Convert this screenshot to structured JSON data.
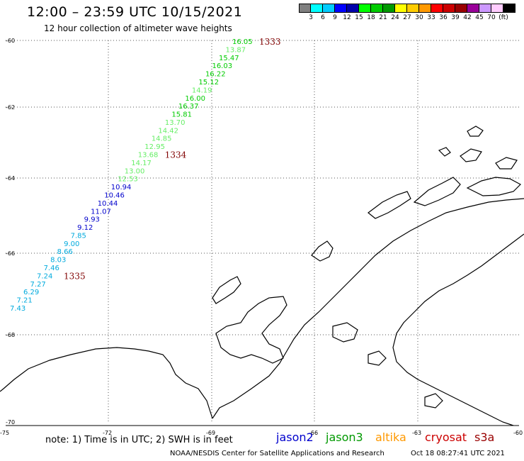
{
  "header": {
    "title": "12:00 – 23:59 UTC 10/15/2021",
    "subtitle": "12 hour collection of altimeter wave heights"
  },
  "legend": {
    "colors": [
      "#808080",
      "#00ffff",
      "#00ccff",
      "#0000ff",
      "#0000aa",
      "#00ff00",
      "#00cc00",
      "#009900",
      "#ffff00",
      "#ffcc00",
      "#ff9900",
      "#ff0000",
      "#cc0000",
      "#990000",
      "#990099",
      "#cc99ff",
      "#ffccff",
      "#000000"
    ],
    "labels": [
      "3",
      "6",
      "9",
      "12",
      "15",
      "18",
      "21",
      "24",
      "27",
      "30",
      "33",
      "36",
      "39",
      "42",
      "45",
      "70",
      "(ft)"
    ]
  },
  "axes": {
    "lat_labels": [
      "-60",
      "-62",
      "-64",
      "-66",
      "-68",
      "-70"
    ],
    "lon_labels": [
      "-75",
      "-72",
      "-69",
      "-66",
      "-63",
      "-60"
    ]
  },
  "track": {
    "obs": [
      {
        "t": "16.05",
        "c": "#00cc00"
      },
      {
        "t": "13.87",
        "c": "#66ee66"
      },
      {
        "t": "15.47",
        "c": "#00cc00"
      },
      {
        "t": "16.03",
        "c": "#00cc00"
      },
      {
        "t": "16.22",
        "c": "#00cc00"
      },
      {
        "t": "15.12",
        "c": "#00cc00"
      },
      {
        "t": "14.19",
        "c": "#66ee66"
      },
      {
        "t": "16.00",
        "c": "#00cc00"
      },
      {
        "t": "16.37",
        "c": "#00cc00"
      },
      {
        "t": "15.81",
        "c": "#00cc00"
      },
      {
        "t": "13.70",
        "c": "#66ee66"
      },
      {
        "t": "14.42",
        "c": "#66ee66"
      },
      {
        "t": "14.85",
        "c": "#66ee66"
      },
      {
        "t": "12.95",
        "c": "#66ee66"
      },
      {
        "t": "13.68",
        "c": "#66ee66"
      },
      {
        "t": "14.17",
        "c": "#66ee66"
      },
      {
        "t": "13.00",
        "c": "#66ee66"
      },
      {
        "t": "12.53",
        "c": "#66ee66"
      },
      {
        "t": "10.94",
        "c": "#0000cc"
      },
      {
        "t": "10.46",
        "c": "#0000cc"
      },
      {
        "t": "10.44",
        "c": "#0000cc"
      },
      {
        "t": "11.07",
        "c": "#0000cc"
      },
      {
        "t": "9.93",
        "c": "#0000cc"
      },
      {
        "t": "9.12",
        "c": "#0000cc"
      },
      {
        "t": "7.85",
        "c": "#00aadd"
      },
      {
        "t": "9.00",
        "c": "#00aadd"
      },
      {
        "t": "8.66",
        "c": "#00aadd"
      },
      {
        "t": "8.03",
        "c": "#00aadd"
      },
      {
        "t": "7.46",
        "c": "#00aadd"
      },
      {
        "t": "7.24",
        "c": "#00aadd"
      },
      {
        "t": "7.27",
        "c": "#00aadd"
      },
      {
        "t": "6.29",
        "c": "#00aadd"
      },
      {
        "t": "7.21",
        "c": "#00aadd"
      },
      {
        "t": "7.43",
        "c": "#00aadd"
      }
    ],
    "times": [
      {
        "t": "1333",
        "i": 0
      },
      {
        "t": "1334",
        "i": 14
      },
      {
        "t": "1335",
        "i": 29
      }
    ],
    "time_color": "#800000"
  },
  "footer": {
    "note": "note: 1) Time is in UTC; 2) SWH is in feet",
    "satellites": [
      {
        "name": "jason2",
        "color": "#0000cc"
      },
      {
        "name": "jason3",
        "color": "#009900"
      },
      {
        "name": "altika",
        "color": "#ff9900"
      },
      {
        "name": "cryosat",
        "color": "#cc0000"
      },
      {
        "name": "s3a",
        "color": "#990000"
      }
    ],
    "credit": "NOAA/NESDIS Center for Satellite Applications and Research",
    "stamp": "Oct 18 08:27:41 UTC 2021"
  }
}
